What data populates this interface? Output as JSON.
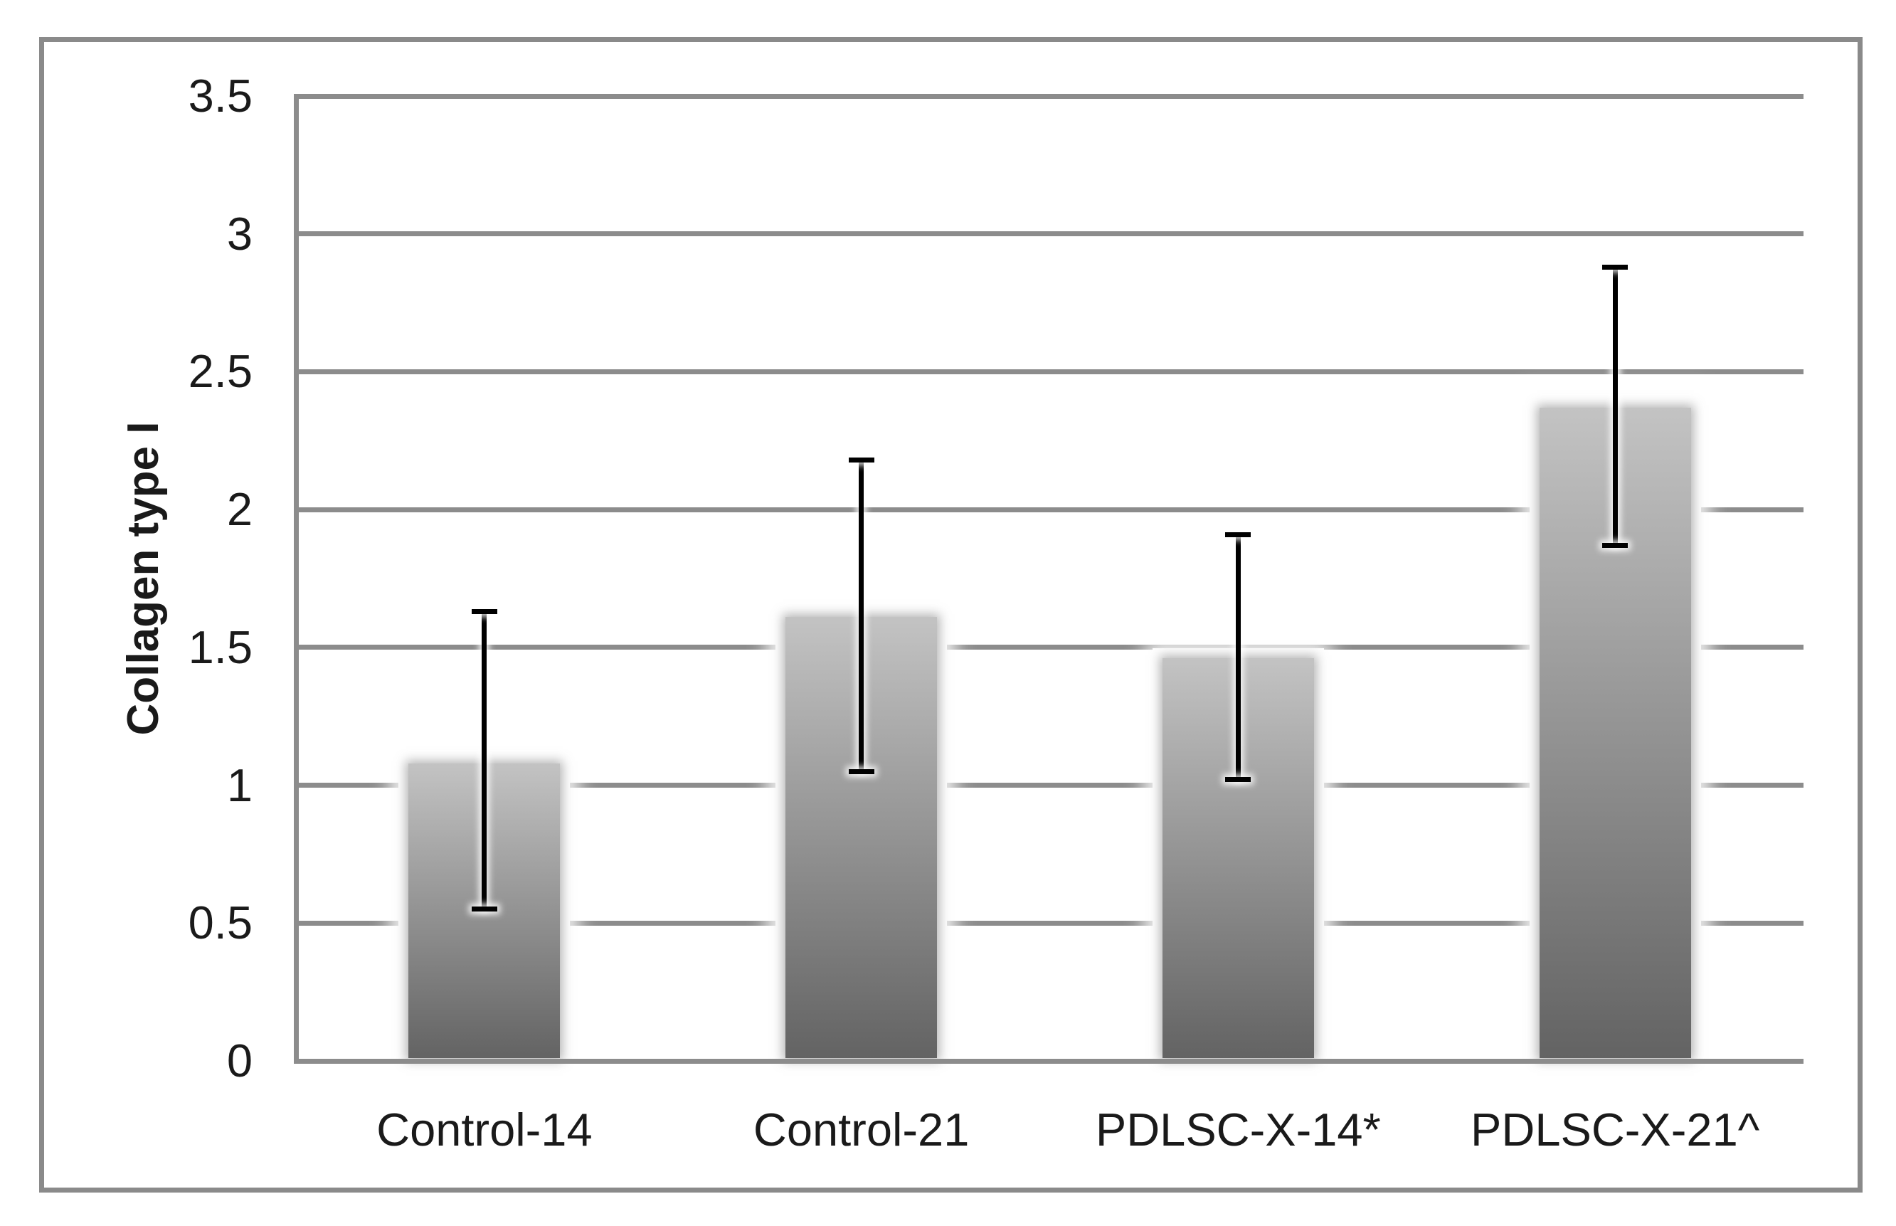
{
  "figure": {
    "background": "#ffffff",
    "frame_color": "#8a8a8a"
  },
  "chart_data": {
    "type": "bar",
    "title": "",
    "xlabel": "",
    "ylabel": "Collagen type I",
    "categories": [
      "Control-14",
      "Control-21",
      "PDLSC-X-14*",
      "PDLSC-X-21^"
    ],
    "values": [
      1.08,
      1.61,
      1.46,
      2.37
    ],
    "error_bars": {
      "upper": [
        1.63,
        2.18,
        1.91,
        2.88
      ],
      "lower": [
        0.55,
        1.05,
        1.02,
        1.87
      ]
    },
    "ylim": [
      0,
      3.5
    ],
    "ytick_interval": 0.5,
    "ytick_labels": [
      "0",
      "0.5",
      "1",
      "1.5",
      "2",
      "2.5",
      "3",
      "3.5"
    ],
    "grid": true,
    "legend": false,
    "colors": {
      "bar_gradient_top": "#c3c3c3",
      "bar_gradient_bottom": "#636363",
      "gridline": "#8c8c8c",
      "axis": "#8c8c8c",
      "error_bar": "#000000",
      "label": "#1a1a1a"
    }
  }
}
